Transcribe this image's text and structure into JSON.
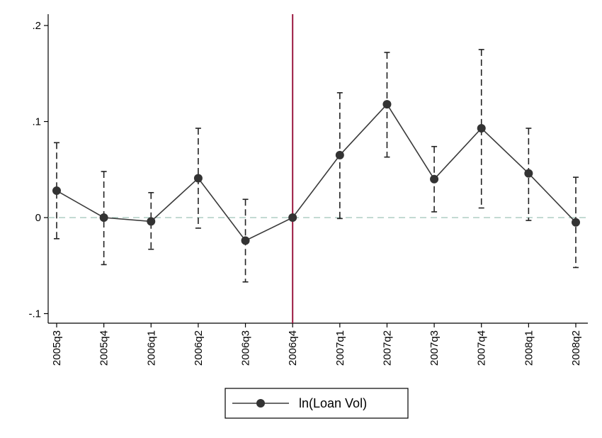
{
  "chart_data": {
    "type": "line",
    "title": "",
    "xlabel": "",
    "ylabel": "",
    "categories": [
      "2005q3",
      "2005q4",
      "2006q1",
      "2006q2",
      "2006q3",
      "2006q4",
      "2007q1",
      "2007q2",
      "2007q3",
      "2007q4",
      "2008q1",
      "2008q2"
    ],
    "series": [
      {
        "name": "ln(Loan Vol)",
        "values": [
          0.028,
          0.0,
          -0.004,
          0.041,
          -0.024,
          0.0,
          0.065,
          0.118,
          0.04,
          0.093,
          0.046,
          -0.005
        ],
        "ci_lower": [
          -0.022,
          -0.049,
          -0.033,
          -0.011,
          -0.067,
          0.0,
          -0.001,
          0.063,
          0.006,
          0.01,
          -0.003,
          -0.052
        ],
        "ci_upper": [
          0.078,
          0.048,
          0.026,
          0.093,
          0.019,
          0.0,
          0.13,
          0.172,
          0.074,
          0.175,
          0.093,
          0.042
        ]
      }
    ],
    "yticks": [
      -0.1,
      0,
      0.1,
      0.2
    ],
    "ytick_labels": [
      "-.1",
      "0",
      ".1",
      ".2"
    ],
    "ylim": [
      -0.107,
      0.211
    ],
    "reference_lines": {
      "horizontal_zero": 0,
      "vertical_category": "2006q4"
    },
    "legend_position": "bottom-center",
    "grid": false,
    "colors": {
      "series_line": "#3a3a3a",
      "marker": "#333333",
      "error_bar": "#222222",
      "zero_line": "#9fc3b9",
      "vertical_line": "#9b1840",
      "axis": "#000000"
    }
  }
}
